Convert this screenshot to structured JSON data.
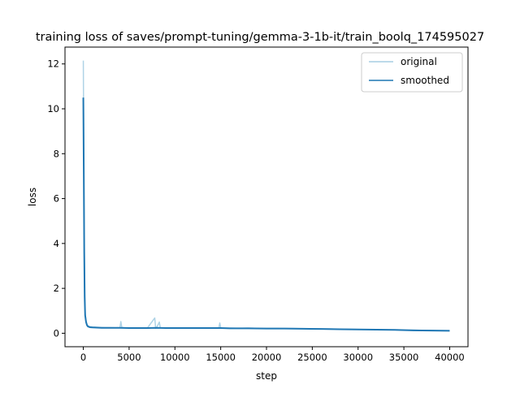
{
  "chart_data": {
    "type": "line",
    "title": "training loss of saves/prompt-tuning/gemma-3-1b-it/train_boolq_174595027",
    "xlabel": "step",
    "ylabel": "loss",
    "xlim": [
      -2000,
      42000
    ],
    "ylim": [
      -0.6,
      12.75
    ],
    "xticks": [
      0,
      5000,
      10000,
      15000,
      20000,
      25000,
      30000,
      35000,
      40000
    ],
    "yticks": [
      0,
      2,
      4,
      6,
      8,
      10,
      12
    ],
    "grid": false,
    "legend_position": "top-right",
    "series": [
      {
        "name": "original",
        "color": "#a6cee3",
        "x": [
          0,
          50,
          100,
          150,
          200,
          300,
          400,
          500,
          700,
          1000,
          1500,
          2000,
          2500,
          3000,
          3500,
          4000,
          4100,
          4200,
          4500,
          5000,
          6000,
          7000,
          7800,
          7900,
          8000,
          8300,
          8400,
          8500,
          9000,
          10000,
          11000,
          12000,
          13000,
          14000,
          14800,
          14900,
          15000,
          16000,
          17000,
          18000,
          19000,
          20000,
          21000,
          22000,
          23000,
          24000,
          25000,
          26000,
          27000,
          28000,
          29000,
          30000,
          31000,
          32000,
          33000,
          34000,
          35000,
          36000,
          37000,
          38000,
          39000,
          40000
        ],
        "y": [
          12.15,
          8.0,
          4.0,
          1.8,
          0.9,
          0.55,
          0.4,
          0.33,
          0.3,
          0.28,
          0.27,
          0.26,
          0.25,
          0.25,
          0.24,
          0.25,
          0.52,
          0.26,
          0.24,
          0.24,
          0.23,
          0.24,
          0.68,
          0.22,
          0.25,
          0.5,
          0.24,
          0.24,
          0.23,
          0.24,
          0.24,
          0.23,
          0.24,
          0.23,
          0.24,
          0.46,
          0.23,
          0.23,
          0.22,
          0.23,
          0.22,
          0.22,
          0.22,
          0.21,
          0.21,
          0.2,
          0.2,
          0.19,
          0.19,
          0.18,
          0.18,
          0.17,
          0.17,
          0.16,
          0.15,
          0.15,
          0.14,
          0.14,
          0.13,
          0.13,
          0.12,
          0.12
        ]
      },
      {
        "name": "smoothed",
        "color": "#1f77b4",
        "x": [
          0,
          50,
          100,
          150,
          200,
          300,
          400,
          500,
          700,
          1000,
          1500,
          2000,
          3000,
          4000,
          5000,
          6000,
          7000,
          8000,
          9000,
          10000,
          12000,
          14000,
          15000,
          16000,
          18000,
          20000,
          22000,
          24000,
          26000,
          28000,
          30000,
          32000,
          34000,
          36000,
          38000,
          40000
        ],
        "y": [
          10.5,
          7.2,
          3.6,
          1.6,
          0.8,
          0.5,
          0.36,
          0.3,
          0.27,
          0.26,
          0.25,
          0.24,
          0.24,
          0.24,
          0.23,
          0.23,
          0.23,
          0.24,
          0.23,
          0.23,
          0.23,
          0.23,
          0.23,
          0.22,
          0.22,
          0.21,
          0.21,
          0.2,
          0.19,
          0.18,
          0.17,
          0.16,
          0.15,
          0.13,
          0.12,
          0.11
        ]
      }
    ]
  }
}
